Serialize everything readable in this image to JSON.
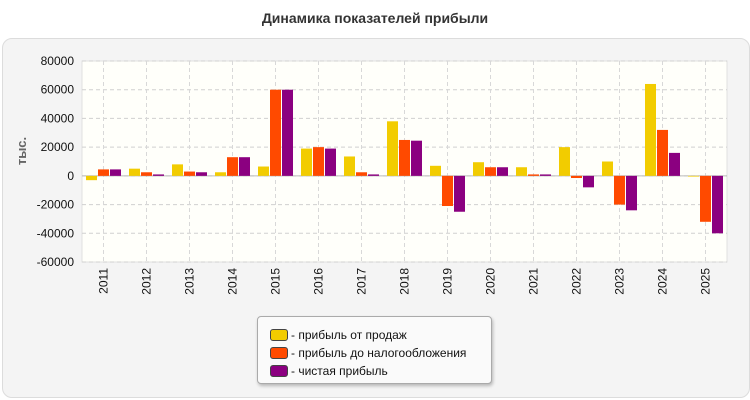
{
  "chart_data": {
    "type": "bar",
    "title": "Динамика показателей прибыли",
    "ylabel": "тыс.",
    "xlabel": "",
    "ylim": [
      -60000,
      80000
    ],
    "yticks": [
      80000,
      60000,
      40000,
      20000,
      0,
      -20000,
      -40000,
      -60000
    ],
    "grid": true,
    "legend_position": "bottom",
    "categories": [
      "2011",
      "2012",
      "2013",
      "2014",
      "2015",
      "2016",
      "2017",
      "2018",
      "2019",
      "2020",
      "2021",
      "2022",
      "2023",
      "2024",
      "2025"
    ],
    "series": [
      {
        "name": "- прибыль от продаж",
        "color": "#f2cc00",
        "values": [
          -3000,
          5000,
          8000,
          2500,
          6500,
          19000,
          13500,
          38000,
          7000,
          9500,
          6000,
          20000,
          10000,
          64000,
          -500
        ]
      },
      {
        "name": "- прибыль до налогообложения",
        "color": "#ff4a00",
        "values": [
          4500,
          2500,
          3000,
          13000,
          60000,
          20000,
          2500,
          25000,
          -21000,
          6000,
          1000,
          -1500,
          -20000,
          32000,
          -32000
        ]
      },
      {
        "name": "- чистая прибыль",
        "color": "#8b0080",
        "values": [
          4500,
          1000,
          2500,
          13000,
          60000,
          19000,
          1000,
          24500,
          -25000,
          6000,
          1000,
          -8000,
          -24000,
          16000,
          -40000
        ]
      }
    ]
  }
}
